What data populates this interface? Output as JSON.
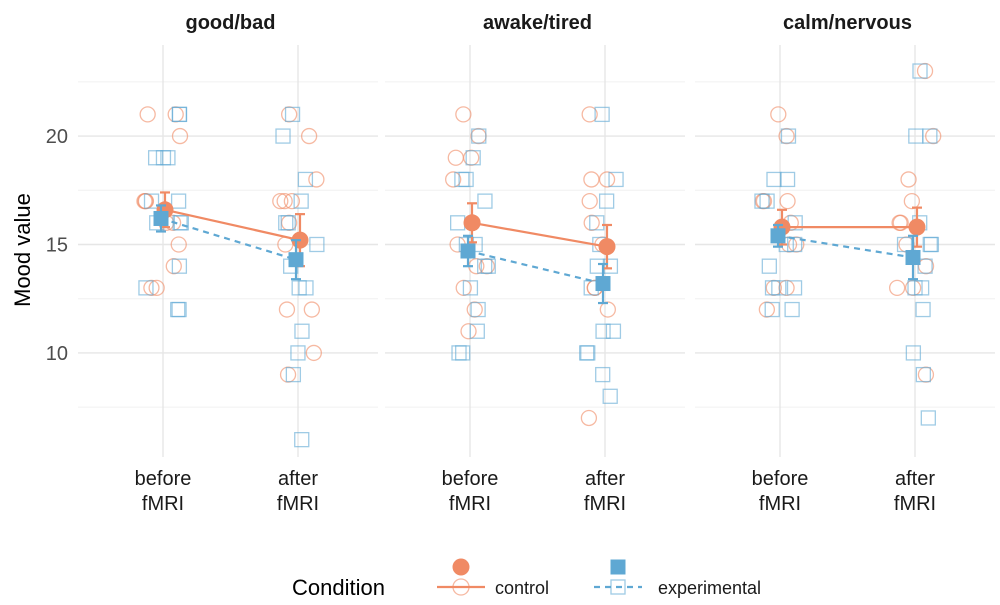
{
  "chart_data": {
    "type": "scatter",
    "y_label": "Mood value",
    "x_categories": [
      [
        "before",
        "fMRI"
      ],
      [
        "after",
        "fMRI"
      ]
    ],
    "ylim": [
      5.2,
      24.2
    ],
    "y_ticks": [
      10,
      15,
      20
    ],
    "y_minor_ticks": [
      7.5,
      12.5,
      17.5,
      22.5
    ],
    "legend": {
      "title": "Condition",
      "items": [
        {
          "name": "control",
          "color": "#f08a64",
          "marker": "circle",
          "line": "solid"
        },
        {
          "name": "experimental",
          "color": "#5fa8d3",
          "marker": "square",
          "line": "dashed"
        }
      ]
    },
    "panels": [
      {
        "title": "good/bad",
        "series": [
          {
            "name": "control",
            "mean": [
              16.6,
              15.2
            ],
            "error": [
              0.8,
              1.2
            ],
            "individual": {
              "before": [
                21,
                21,
                20,
                17,
                17,
                17,
                16,
                16,
                15,
                14,
                13,
                13
              ],
              "after": [
                21,
                20,
                18,
                17,
                17,
                17,
                16,
                15,
                12,
                12,
                10,
                9
              ]
            }
          },
          {
            "name": "experimental",
            "mean": [
              16.2,
              14.3
            ],
            "error": [
              0.6,
              0.9
            ],
            "individual": {
              "before": [
                21,
                21,
                19,
                19,
                19,
                17,
                17,
                16,
                16,
                16,
                14,
                13,
                12,
                12
              ],
              "after": [
                21,
                20,
                18,
                17,
                16,
                16,
                15,
                14,
                13,
                13,
                11,
                10,
                9,
                6
              ]
            }
          }
        ]
      },
      {
        "title": "awake/tired",
        "series": [
          {
            "name": "control",
            "mean": [
              16.0,
              14.9
            ],
            "error": [
              0.9,
              1.0
            ],
            "individual": {
              "before": [
                21,
                20,
                19,
                19,
                18,
                16,
                15,
                14,
                14,
                13,
                12,
                11
              ],
              "after": [
                21,
                18,
                18,
                17,
                16,
                15,
                13,
                13,
                12,
                7
              ]
            }
          },
          {
            "name": "experimental",
            "mean": [
              14.7,
              13.2
            ],
            "error": [
              0.7,
              0.9
            ],
            "individual": {
              "before": [
                20,
                19,
                18,
                18,
                17,
                16,
                15,
                15,
                14,
                14,
                13,
                12,
                11,
                10,
                10
              ],
              "after": [
                21,
                18,
                17,
                16,
                15,
                14,
                14,
                13,
                11,
                11,
                10,
                10,
                9,
                8
              ]
            }
          }
        ]
      },
      {
        "title": "calm/nervous",
        "series": [
          {
            "name": "control",
            "mean": [
              15.8,
              15.8
            ],
            "error": [
              0.8,
              0.9
            ],
            "individual": {
              "before": [
                21,
                20,
                17,
                17,
                17,
                16,
                15,
                15,
                13,
                13,
                12
              ],
              "after": [
                23,
                20,
                18,
                17,
                16,
                16,
                15,
                14,
                13,
                13,
                9
              ]
            }
          },
          {
            "name": "experimental",
            "mean": [
              15.4,
              14.4
            ],
            "error": [
              0.5,
              1.0
            ],
            "individual": {
              "before": [
                20,
                18,
                18,
                17,
                17,
                16,
                15,
                15,
                14,
                13,
                13,
                13,
                12,
                12
              ],
              "after": [
                23,
                20,
                20,
                16,
                15,
                15,
                15,
                14,
                13,
                13,
                12,
                10,
                9,
                7
              ]
            }
          }
        ]
      }
    ]
  }
}
